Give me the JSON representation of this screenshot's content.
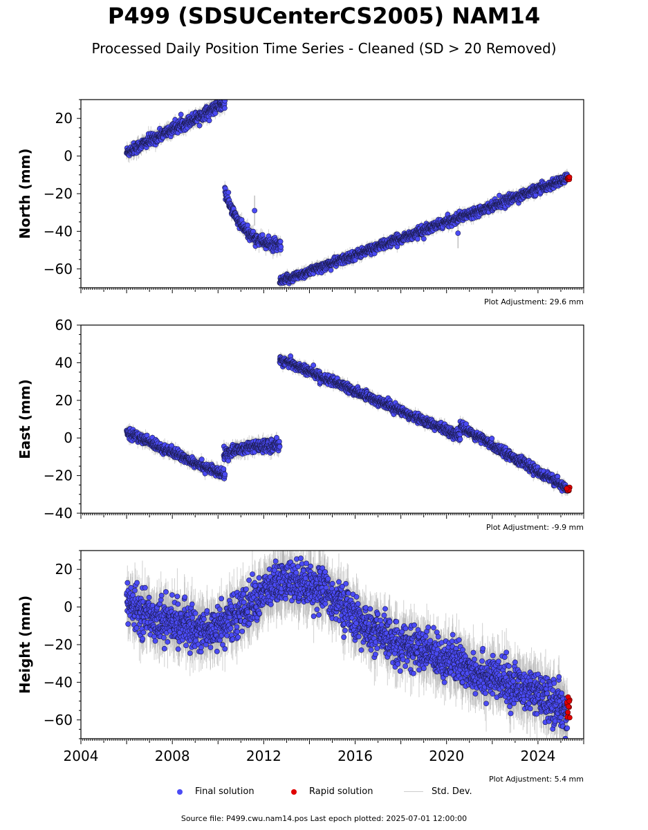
{
  "title": "P499 (SDSUCenterCS2005) NAM14",
  "subtitle": "Processed Daily Position Time Series - Cleaned (SD > 20 Removed)",
  "colors": {
    "final": "#4b4bf5",
    "rapid": "#e00000",
    "stddev": "#b0b0b0"
  },
  "legend": {
    "final": "Final solution",
    "rapid": "Rapid solution",
    "stddev": "Std. Dev."
  },
  "source_text": "Source file: P499.cwu.nam14.pos  Last epoch plotted: 2025-07-01 12:00:00",
  "chart_data": [
    {
      "type": "scatter",
      "ylabel": "North (mm)",
      "adjustment": "Plot Adjustment: 29.6 mm",
      "xlim": [
        2004,
        2026
      ],
      "ylim": [
        -70,
        30
      ],
      "yticks": [
        -60,
        -40,
        -20,
        0,
        20
      ],
      "segments": [
        {
          "x0": 2006.0,
          "x1": 2010.3,
          "y0": 2,
          "y1": 28,
          "noise": 1.5
        },
        {
          "x0": 2010.3,
          "x1": 2012.75,
          "y0": -19,
          "y1": -48,
          "noise": 1.5,
          "curve": "exp"
        },
        {
          "x0": 2012.7,
          "x1": 2025.3,
          "y0": -67,
          "y1": -12,
          "noise": 1.2
        }
      ],
      "outliers": [
        [
          2011.6,
          -29
        ],
        [
          2020.5,
          -41
        ]
      ],
      "rapid": {
        "x0": 2025.25,
        "x1": 2025.4,
        "y": -12,
        "spread": 1
      }
    },
    {
      "type": "scatter",
      "ylabel": "East (mm)",
      "adjustment": "Plot Adjustment: -9.9 mm",
      "xlim": [
        2004,
        2026
      ],
      "ylim": [
        -40,
        60
      ],
      "yticks": [
        -40,
        -20,
        0,
        20,
        40,
        60
      ],
      "segments": [
        {
          "x0": 2006.0,
          "x1": 2010.3,
          "y0": 3,
          "y1": -20,
          "noise": 1.3
        },
        {
          "x0": 2010.25,
          "x1": 2012.7,
          "y0": -9,
          "y1": -4,
          "noise": 1.5,
          "curve": "exp"
        },
        {
          "x0": 2012.7,
          "x1": 2020.6,
          "y0": 42,
          "y1": 1,
          "noise": 1.2
        },
        {
          "x0": 2020.6,
          "x1": 2025.3,
          "y0": 6,
          "y1": -27,
          "noise": 1.2
        }
      ],
      "outliers": [],
      "rapid": {
        "x0": 2025.25,
        "x1": 2025.4,
        "y": -27,
        "spread": 1
      }
    },
    {
      "type": "scatter",
      "ylabel": "Height (mm)",
      "adjustment": "Plot Adjustment: 5.4 mm",
      "xlim": [
        2004,
        2026
      ],
      "ylim": [
        -70,
        30
      ],
      "yticks": [
        -60,
        -40,
        -20,
        0,
        20
      ],
      "xticks": [
        2004,
        2008,
        2012,
        2016,
        2020,
        2024
      ],
      "segments": [
        {
          "x0": 2006.0,
          "x1": 2025.3,
          "noise": 5.5,
          "path": [
            [
              2006.0,
              2
            ],
            [
              2007.0,
              -5
            ],
            [
              2008.0,
              -8
            ],
            [
              2009.5,
              -13
            ],
            [
              2010.5,
              -7
            ],
            [
              2011.5,
              2
            ],
            [
              2012.5,
              12
            ],
            [
              2013.5,
              14
            ],
            [
              2014.5,
              10
            ],
            [
              2015.5,
              0
            ],
            [
              2016.5,
              -12
            ],
            [
              2018.0,
              -20
            ],
            [
              2019.5,
              -25
            ],
            [
              2021.0,
              -33
            ],
            [
              2022.5,
              -40
            ],
            [
              2023.5,
              -44
            ],
            [
              2024.5,
              -50
            ],
            [
              2025.3,
              -55
            ]
          ]
        }
      ],
      "outliers": [],
      "rapid": {
        "x0": 2025.25,
        "x1": 2025.4,
        "y": -53,
        "spread": 6
      }
    }
  ]
}
